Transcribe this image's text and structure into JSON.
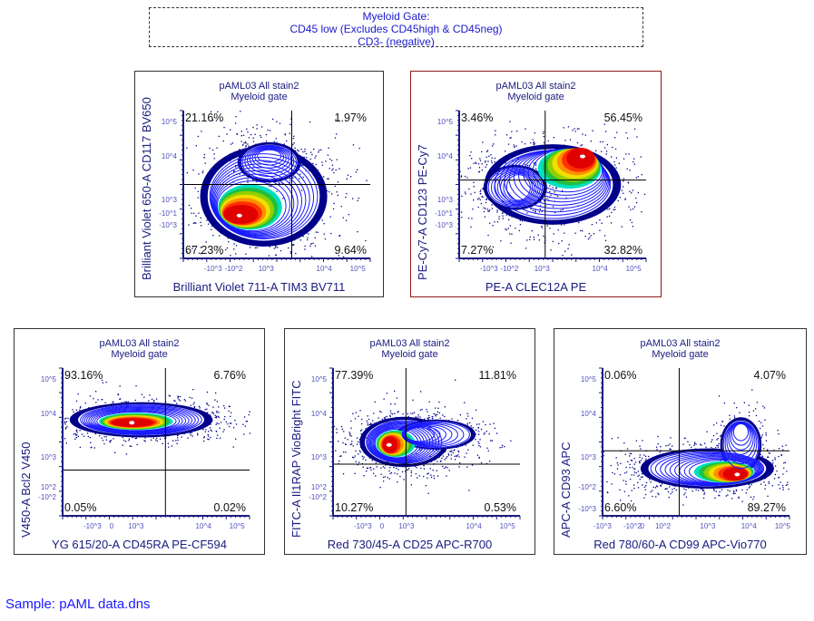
{
  "header": {
    "lines": [
      "Myeloid Gate:",
      "CD45 low (Excludes CD45high & CD45neg)",
      "CD3- (negative)"
    ]
  },
  "footer": {
    "sample_label": "Sample: pAML data.dns"
  },
  "colors": {
    "axis": "#1a1a80",
    "density_outer": "#00008b",
    "contour": "#1a1aff",
    "selected_border": "#8b1a1a",
    "header_text": "#1a1acc",
    "sample_text": "#1a1aff"
  },
  "chart_data": [
    {
      "type": "scatter",
      "subtype": "contour-density-plot",
      "title": [
        "pAML03 All stain2",
        "Myeloid gate"
      ],
      "xlabel": "Brilliant Violet 711-A TIM3 BV711",
      "ylabel": "Brilliant Violet 650-A CD117 BV650",
      "x_scale": "biexponential",
      "y_scale": "biexponential",
      "x_ticks": [
        "-10^3",
        "-10^2",
        "10^3",
        "10^4",
        "10^5"
      ],
      "y_ticks": [
        "10^5",
        "10^4",
        "10^3",
        "-10^1",
        "-10^3"
      ],
      "quadrants": {
        "upper_left": "21.16%",
        "upper_right": "1.97%",
        "lower_left": "67.23%",
        "lower_right": "9.64%"
      },
      "selected": false
    },
    {
      "type": "scatter",
      "subtype": "contour-density-plot",
      "title": [
        "pAML03 All stain2",
        "Myeloid gate"
      ],
      "xlabel": "PE-A CLEC12A PE",
      "ylabel": "PE-Cy7-A CD123 PE-Cy7",
      "x_scale": "biexponential",
      "y_scale": "biexponential",
      "x_ticks": [
        "-10^3",
        "-10^2",
        "10^3",
        "10^4",
        "10^5"
      ],
      "y_ticks": [
        "10^5",
        "10^4",
        "10^3",
        "-10^1",
        "-10^3"
      ],
      "quadrants": {
        "upper_left": "3.46%",
        "upper_right": "56.45%",
        "lower_left": "7.27%",
        "lower_right": "32.82%"
      },
      "selected": true
    },
    {
      "type": "scatter",
      "subtype": "contour-density-plot",
      "title": [
        "pAML03 All stain2",
        "Myeloid gate"
      ],
      "xlabel": "YG 615/20-A CD45RA PE-CF594",
      "ylabel": "V450-A Bcl2 V450",
      "x_scale": "biexponential",
      "y_scale": "biexponential",
      "x_ticks": [
        "-10^3",
        "0",
        "10^3",
        "10^4",
        "10^5"
      ],
      "y_ticks": [
        "10^5",
        "10^4",
        "10^3",
        "10^2",
        "-10^2"
      ],
      "quadrants": {
        "upper_left": "93.16%",
        "upper_right": "6.76%",
        "lower_left": "0.05%",
        "lower_right": "0.02%"
      },
      "selected": false
    },
    {
      "type": "scatter",
      "subtype": "contour-density-plot",
      "title": [
        "pAML03 All stain2",
        "Myeloid gate"
      ],
      "xlabel": "Red 730/45-A CD25 APC-R700",
      "ylabel": "FITC-A Il1RAP VioBright FITC",
      "x_scale": "biexponential",
      "y_scale": "biexponential",
      "x_ticks": [
        "-10^3",
        "0",
        "10^3",
        "10^4",
        "10^5"
      ],
      "y_ticks": [
        "10^5",
        "10^4",
        "10^3",
        "10^2",
        "-10^2"
      ],
      "quadrants": {
        "upper_left": "77.39%",
        "upper_right": "11.81%",
        "lower_left": "10.27%",
        "lower_right": "0.53%"
      },
      "selected": false
    },
    {
      "type": "scatter",
      "subtype": "contour-density-plot",
      "title": [
        "pAML03 All stain2",
        "Myeloid gate"
      ],
      "xlabel": "Red 780/60-A CD99 APC-Vio770",
      "ylabel": "APC-A CD93 APC",
      "x_scale": "biexponential",
      "y_scale": "biexponential",
      "x_ticks": [
        "-10^3",
        "-10^2",
        "0",
        "10^2",
        "10^3",
        "10^4",
        "10^5"
      ],
      "y_ticks": [
        "10^5",
        "10^4",
        "10^3",
        "-10^2",
        "-10^3"
      ],
      "quadrants": {
        "upper_left": "0.06%",
        "upper_right": "4.07%",
        "lower_left": "6.60%",
        "lower_right": "89.27%"
      },
      "selected": false
    }
  ]
}
